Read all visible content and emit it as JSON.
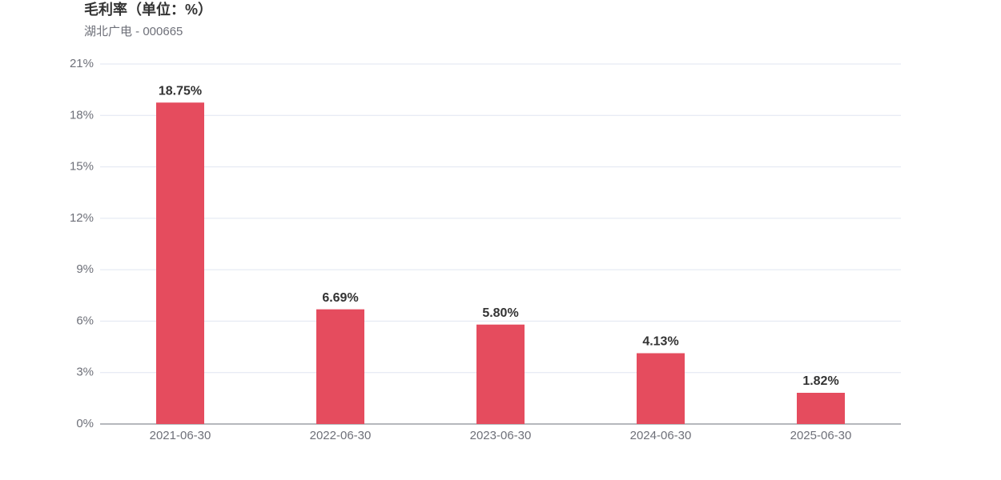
{
  "chart_data": {
    "type": "bar",
    "title": "毛利率（单位：%）",
    "subtitle": "湖北广电 - 000665",
    "categories": [
      "2021-06-30",
      "2022-06-30",
      "2023-06-30",
      "2024-06-30",
      "2025-06-30"
    ],
    "values": [
      18.75,
      6.69,
      5.8,
      4.13,
      1.82
    ],
    "value_labels": [
      "18.75%",
      "6.69%",
      "5.80%",
      "4.13%",
      "1.82%"
    ],
    "color": "#e54c5e",
    "ylim": [
      0,
      21
    ],
    "yticks": [
      {
        "value": 0,
        "label": "0%"
      },
      {
        "value": 3,
        "label": "3%"
      },
      {
        "value": 6,
        "label": "6%"
      },
      {
        "value": 9,
        "label": "9%"
      },
      {
        "value": 12,
        "label": "12%"
      },
      {
        "value": 15,
        "label": "15%"
      },
      {
        "value": 18,
        "label": "18%"
      },
      {
        "value": 21,
        "label": "21%"
      }
    ],
    "grid": true
  }
}
